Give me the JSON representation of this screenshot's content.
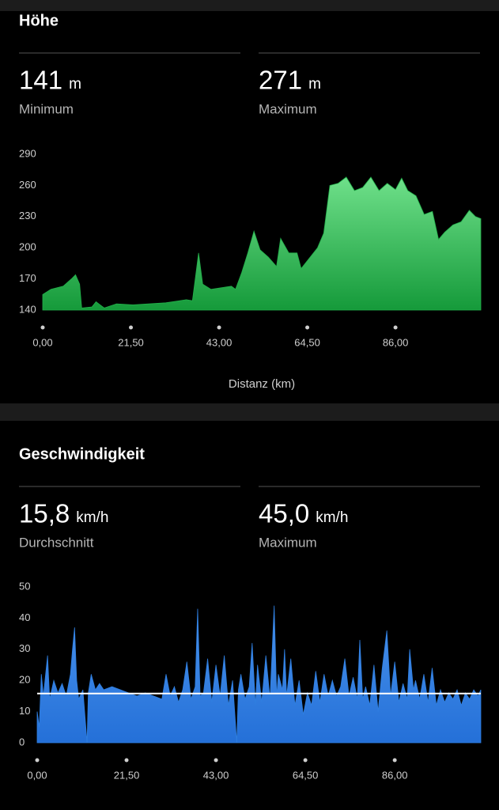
{
  "chart_data": [
    {
      "type": "area",
      "title": "Höhe",
      "stats": [
        {
          "value": 141,
          "unit": "m",
          "name": "Minimum"
        },
        {
          "value": 271,
          "unit": "m",
          "name": "Maximum"
        }
      ],
      "color": "#22b04a",
      "x": [
        0,
        2,
        5,
        7,
        8,
        9,
        9.5,
        12,
        13,
        15,
        18,
        22,
        30,
        35,
        36.5,
        38,
        39,
        41,
        46,
        47,
        48.5,
        50,
        51.5,
        53,
        55,
        57,
        58,
        60,
        62,
        63,
        65,
        67,
        68.5,
        70,
        72,
        74,
        76,
        78,
        80,
        82,
        84,
        86,
        87.5,
        89,
        91,
        93,
        95,
        96.5,
        98,
        100,
        102,
        104,
        105.5,
        106.8
      ],
      "values": [
        155,
        160,
        163,
        170,
        174,
        165,
        142,
        143,
        148,
        142,
        146,
        145,
        147,
        150,
        149,
        195,
        165,
        160,
        163,
        160,
        176,
        195,
        216,
        198,
        191,
        182,
        209,
        195,
        195,
        180,
        190,
        200,
        214,
        260,
        262,
        268,
        255,
        258,
        268,
        255,
        262,
        256,
        267,
        255,
        250,
        232,
        235,
        208,
        215,
        222,
        225,
        236,
        230,
        228
      ],
      "xlim": [
        0,
        106.8
      ],
      "xticks": [
        {
          "value": 0,
          "label": "0,00"
        },
        {
          "value": 21.5,
          "label": "21,50"
        },
        {
          "value": 43,
          "label": "43,00"
        },
        {
          "value": 64.5,
          "label": "64,50"
        },
        {
          "value": 86,
          "label": "86,00"
        }
      ],
      "xlabel": "Distanz (km)",
      "ylim": [
        140,
        290
      ],
      "yticks": [
        140,
        170,
        200,
        230,
        260,
        290
      ]
    },
    {
      "type": "area",
      "title": "Geschwindigkeit",
      "stats": [
        {
          "value": 15.8,
          "label": "15,8",
          "unit": "km/h",
          "name": "Durchschnitt"
        },
        {
          "value": 45,
          "label": "45,0",
          "unit": "km/h",
          "name": "Maximum"
        }
      ],
      "color": "#2f7fe0",
      "x": [
        0,
        0.5,
        1,
        1.5,
        2.5,
        3,
        4,
        5,
        6,
        7,
        8,
        8.5,
        9,
        9.5,
        10,
        11,
        12,
        12.3,
        13,
        14,
        15,
        16,
        18,
        20,
        22,
        24,
        26,
        28,
        30,
        31,
        32,
        33,
        34,
        35,
        36,
        37,
        38,
        38.6,
        39.2,
        40,
        41,
        42,
        43,
        44,
        45,
        46,
        47,
        48,
        48.4,
        49,
        50,
        51,
        51.7,
        52.5,
        53,
        54,
        55,
        56,
        57,
        57.6,
        58,
        59,
        59.5,
        60,
        61,
        62,
        63,
        64,
        65,
        66,
        67,
        68,
        69,
        70,
        71,
        72,
        73,
        74,
        75,
        76,
        77,
        77.6,
        78.3,
        79,
        80,
        81,
        82,
        83,
        84.1,
        85,
        86,
        87,
        88,
        89,
        89.6,
        90.5,
        91,
        92,
        93,
        94,
        95,
        96,
        97,
        98,
        99,
        100,
        101,
        102,
        103,
        104,
        105,
        106,
        106.7
      ],
      "values": [
        10,
        5,
        22,
        15,
        28,
        14,
        20,
        16,
        19,
        15,
        22,
        30,
        37,
        20,
        14,
        17,
        0,
        16,
        22,
        17,
        19,
        17,
        18,
        17,
        16,
        15,
        16,
        15,
        14,
        22,
        15,
        18,
        13,
        17,
        26,
        14,
        18,
        43,
        15,
        16,
        27,
        13,
        25,
        15,
        28,
        12,
        20,
        0,
        17,
        22,
        14,
        18,
        32,
        12,
        25,
        13,
        28,
        14,
        44,
        15,
        22,
        17,
        30,
        15,
        27,
        12,
        20,
        9,
        16,
        12,
        23,
        13,
        22,
        15,
        20,
        15,
        18,
        27,
        15,
        21,
        14,
        33,
        14,
        18,
        12,
        25,
        10,
        24,
        36,
        15,
        26,
        13,
        19,
        14,
        30,
        17,
        20,
        14,
        22,
        13,
        24,
        12,
        17,
        13,
        16,
        14,
        17,
        12,
        16,
        14,
        17,
        15,
        17
      ],
      "xlim": [
        0,
        106.7
      ],
      "xticks": [
        {
          "value": 0,
          "label": "0,00"
        },
        {
          "value": 21.5,
          "label": "21,50"
        },
        {
          "value": 43,
          "label": "43,00"
        },
        {
          "value": 64.5,
          "label": "64,50"
        },
        {
          "value": 86,
          "label": "86,00"
        }
      ],
      "ylim": [
        0,
        50
      ],
      "yticks": [
        0,
        10,
        20,
        30,
        40,
        50
      ]
    }
  ]
}
